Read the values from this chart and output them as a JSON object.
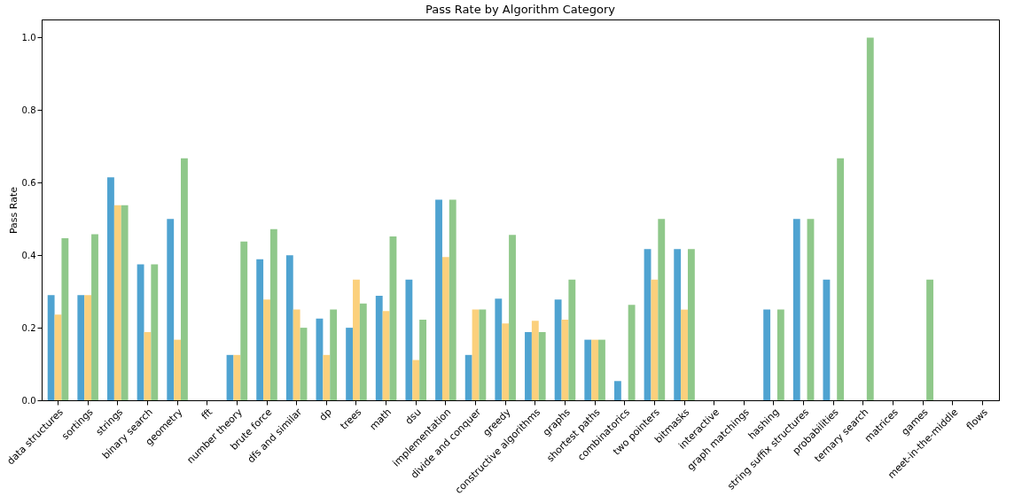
{
  "chart_data": {
    "type": "bar",
    "title": "Pass Rate by Algorithm Category",
    "ylabel": "Pass Rate",
    "categories": [
      "data structures",
      "sortings",
      "strings",
      "binary search",
      "geometry",
      "fft",
      "number theory",
      "brute force",
      "dfs and similar",
      "dp",
      "trees",
      "math",
      "dsu",
      "implementation",
      "divide and conquer",
      "greedy",
      "constructive algorithms",
      "graphs",
      "shortest paths",
      "combinatorics",
      "two pointers",
      "bitmasks",
      "interactive",
      "graph matchings",
      "hashing",
      "string suffix structures",
      "probabilities",
      "ternary search",
      "matrices",
      "games",
      "meet-in-the-middle",
      "flows"
    ],
    "series": [
      {
        "color": "#4fa3d1",
        "values": [
          0.29,
          0.29,
          0.615,
          0.375,
          0.5,
          0,
          0.125,
          0.389,
          0.4,
          0.225,
          0.2,
          0.288,
          0.333,
          0.553,
          0.125,
          0.28,
          0.188,
          0.278,
          0.167,
          0.053,
          0.417,
          0.417,
          0,
          0,
          0.25,
          0.5,
          0.333,
          0,
          0,
          0,
          0,
          0
        ]
      },
      {
        "color": "#fbd07c",
        "values": [
          0.236,
          0.29,
          0.538,
          0.188,
          0.167,
          0,
          0.125,
          0.278,
          0.25,
          0.125,
          0.333,
          0.246,
          0.111,
          0.395,
          0.25,
          0.212,
          0.219,
          0.222,
          0.167,
          0,
          0.333,
          0.25,
          0,
          0,
          0,
          0,
          0,
          0,
          0,
          0,
          0,
          0
        ]
      },
      {
        "color": "#8fc88a",
        "values": [
          0.447,
          0.458,
          0.538,
          0.375,
          0.667,
          0,
          0.438,
          0.472,
          0.2,
          0.25,
          0.267,
          0.452,
          0.222,
          0.553,
          0.25,
          0.456,
          0.188,
          0.333,
          0.167,
          0.263,
          0.5,
          0.417,
          0,
          0,
          0.25,
          0.5,
          0.667,
          1.0,
          0,
          0.333,
          0,
          0
        ]
      }
    ],
    "ylim": [
      0,
      1.05
    ],
    "yticks": [
      {
        "value": 0,
        "label": "0.0"
      },
      {
        "value": 0.2,
        "label": "0.2"
      },
      {
        "value": 0.4,
        "label": "0.4"
      },
      {
        "value": 0.6,
        "label": "0.6"
      },
      {
        "value": 0.8,
        "label": "0.8"
      },
      {
        "value": 1.0,
        "label": "1.0"
      }
    ],
    "grid": false,
    "legend": false
  }
}
